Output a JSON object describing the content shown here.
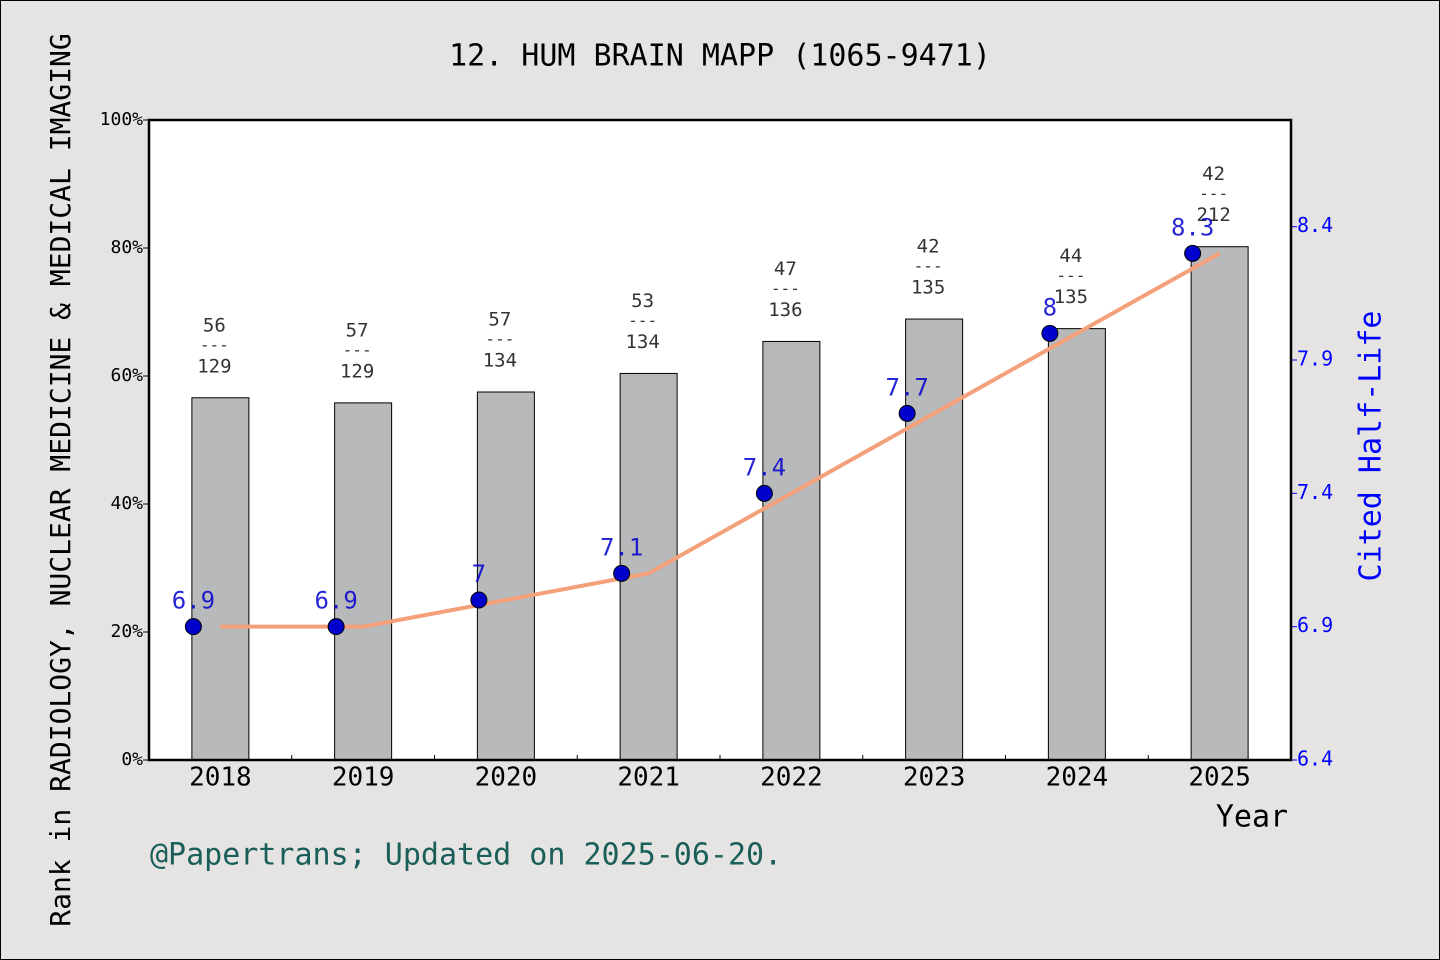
{
  "chart_data": {
    "type": "bar_line",
    "title": "12. HUM BRAIN MAPP (1065-9471)",
    "y_label": "Rank in RADIOLOGY, NUCLEAR MEDICINE & MEDICAL IMAGING",
    "y2_label": "Cited Half-Life",
    "x_label": "Year",
    "footer": "@Papertrans; Updated on 2025-06-20.",
    "categories": [
      "2018",
      "2019",
      "2020",
      "2021",
      "2022",
      "2023",
      "2024",
      "2025"
    ],
    "series": [
      {
        "type": "bar",
        "color": "#b8b9bb",
        "values": [
          56.6,
          55.8,
          57.5,
          60.4,
          65.4,
          68.9,
          67.4,
          80.2
        ]
      },
      {
        "type": "line",
        "axis": "y2",
        "color": "#f4a07a",
        "marker_color": "#0000cc",
        "values": [
          6.9,
          6.9,
          7,
          7.1,
          7.4,
          7.7,
          8,
          8.3
        ]
      }
    ],
    "rank_labels": {
      "rank": [
        56,
        57,
        57,
        53,
        47,
        42,
        44,
        42
      ],
      "total": [
        129,
        129,
        134,
        134,
        136,
        135,
        135,
        212
      ],
      "separator": "---"
    },
    "ylim": [
      0,
      100
    ],
    "yticks": [
      {
        "value": 0,
        "label": "0%"
      },
      {
        "value": 20,
        "label": "20%"
      },
      {
        "value": 40,
        "label": "40%"
      },
      {
        "value": 60,
        "label": "60%"
      },
      {
        "value": 80,
        "label": "80%"
      },
      {
        "value": 100,
        "label": "100%"
      }
    ],
    "y2lim": [
      6.4,
      8.8
    ],
    "y2ticks": [
      6.4,
      6.9,
      7.4,
      7.9,
      8.4
    ],
    "y2_color": "#0000ff",
    "grid": false
  }
}
